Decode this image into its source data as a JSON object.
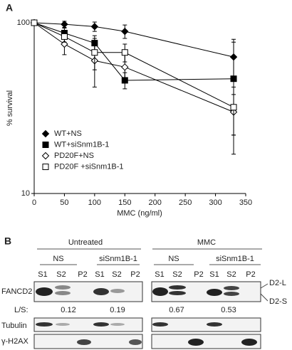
{
  "chart_data": {
    "type": "line",
    "panel_label": "A",
    "ylabel": "% survival",
    "xlabel": "MMC (ng/ml)",
    "x": [
      0,
      50,
      100,
      150,
      330
    ],
    "xlim": [
      0,
      350
    ],
    "xticks": [
      0,
      50,
      100,
      150,
      200,
      250,
      300,
      350
    ],
    "ylim": [
      10,
      100
    ],
    "yticks": [
      10,
      100
    ],
    "log_y": true,
    "legend": "lower left",
    "series": [
      {
        "name": "WT+NS",
        "color": "#000000",
        "marker": "diamond",
        "filled": true,
        "values": [
          100,
          98,
          95,
          89,
          63
        ],
        "errors": [
          0,
          4,
          6,
          8,
          17
        ]
      },
      {
        "name": "WT+siSnm1B-1",
        "color": "#000000",
        "marker": "square",
        "filled": true,
        "values": [
          100,
          87,
          76,
          46,
          47
        ],
        "errors": [
          0,
          6,
          8,
          5,
          30
        ]
      },
      {
        "name": "PD20F+NS",
        "color": "#000000",
        "marker": "diamond",
        "filled": false,
        "values": [
          100,
          75,
          60,
          55,
          30
        ],
        "errors": [
          0,
          10,
          18,
          10,
          8
        ]
      },
      {
        "name": "PD20F +siSnm1B-1",
        "color": "#000000",
        "marker": "square",
        "filled": false,
        "values": [
          100,
          83,
          67,
          67,
          32
        ],
        "errors": [
          0,
          6,
          14,
          8,
          10
        ]
      }
    ]
  },
  "blot": {
    "panel_label": "B",
    "groups": [
      "Untreated",
      "MMC"
    ],
    "subgroups": [
      "NS",
      "siSnm1B-1",
      "NS",
      "siSnm1B-1"
    ],
    "lanes": [
      "S1",
      "S2",
      "P2",
      "S1",
      "S2",
      "P2",
      "S1",
      "S2",
      "P2",
      "S1",
      "S2",
      "P2"
    ],
    "rows": [
      "FANCD2",
      "Tubulin",
      "γ-H2AX"
    ],
    "ratio_label": "L/S:",
    "ratios": [
      0.12,
      0.19,
      0.67,
      0.53
    ],
    "band_labels": [
      "D2-L",
      "D2-S"
    ]
  }
}
